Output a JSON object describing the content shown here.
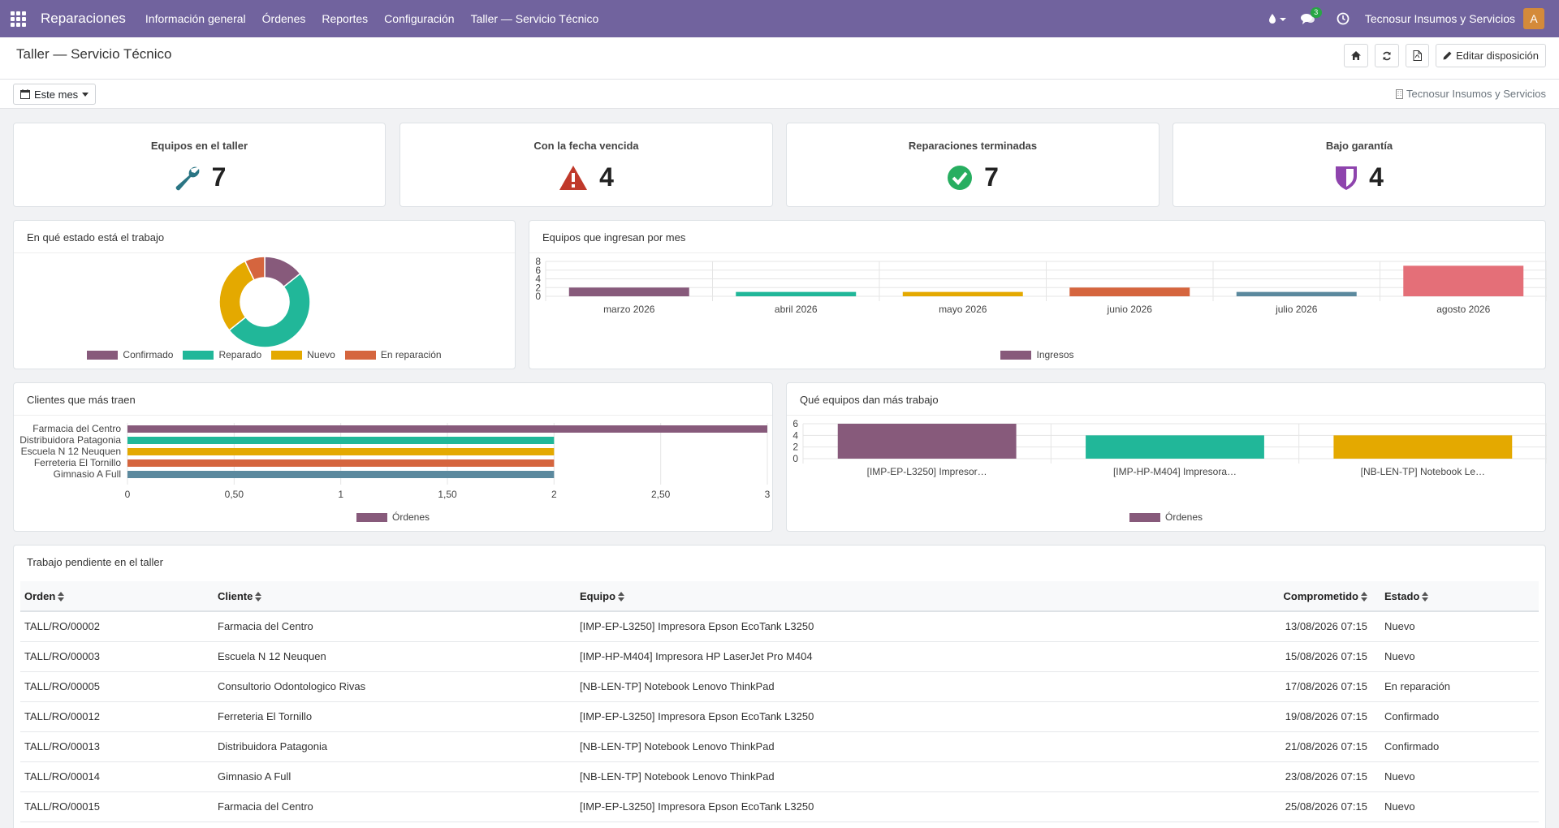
{
  "app": {
    "name": "Reparaciones",
    "menu": [
      "Información general",
      "Órdenes",
      "Reportes",
      "Configuración",
      "Taller — Servicio Técnico"
    ],
    "message_count": "3",
    "company": "Tecnosur Insumos y Servicios",
    "avatar_letter": "A"
  },
  "control": {
    "title": "Taller — Servicio Técnico",
    "edit_layout": "Editar disposición",
    "period": "Este mes",
    "company_filter": "Tecnosur Insumos y Servicios"
  },
  "kpis": [
    {
      "title": "Equipos en el taller",
      "value": "7",
      "icon": "wrench-icon",
      "color": "#2a7584"
    },
    {
      "title": "Con la fecha vencida",
      "value": "4",
      "icon": "warning-icon",
      "color": "#c0392b"
    },
    {
      "title": "Reparaciones terminadas",
      "value": "7",
      "icon": "check-circle-icon",
      "color": "#27ae60"
    },
    {
      "title": "Bajo garantía",
      "value": "4",
      "icon": "shield-icon",
      "color": "#8e44ad"
    }
  ],
  "panels": {
    "status": "En qué estado está el trabajo",
    "monthly": "Equipos que ingresan por mes",
    "clients": "Clientes que más traen",
    "devices": "Qué equipos dan más trabajo",
    "pending": "Trabajo pendiente en el taller"
  },
  "colors": {
    "purple": "#875a7b",
    "teal": "#21b799",
    "yellow": "#e4a900",
    "orange": "#d5653e",
    "slate": "#5b899e",
    "pink": "#e46f78"
  },
  "chart_data": [
    {
      "type": "pie",
      "title": "En qué estado está el trabajo",
      "categories": [
        "Confirmado",
        "Reparado",
        "Nuevo",
        "En reparación"
      ],
      "values": [
        2,
        7,
        4,
        1
      ],
      "legend": "bottom"
    },
    {
      "type": "bar",
      "title": "Equipos que ingresan por mes",
      "categories": [
        "marzo 2026",
        "abril 2026",
        "mayo 2026",
        "junio 2026",
        "julio 2026",
        "agosto 2026"
      ],
      "series": [
        {
          "name": "Ingresos",
          "values": [
            2,
            1,
            1,
            2,
            1,
            7
          ]
        }
      ],
      "ylim": [
        0,
        8
      ],
      "yticks": [
        "0",
        "2",
        "4",
        "6",
        "8"
      ],
      "legend": "bottom"
    },
    {
      "type": "bar",
      "orientation": "horizontal",
      "title": "Clientes que más traen",
      "categories": [
        "Farmacia del Centro",
        "Distribuidora Patagonia",
        "Escuela N 12 Neuquen",
        "Ferreteria El Tornillo",
        "Gimnasio A Full"
      ],
      "series": [
        {
          "name": "Órdenes",
          "values": [
            3,
            2,
            2,
            2,
            2
          ]
        }
      ],
      "xlim": [
        0,
        3
      ],
      "xticks": [
        "0",
        "0,50",
        "1",
        "1,50",
        "2",
        "2,50",
        "3"
      ],
      "legend": "bottom"
    },
    {
      "type": "bar",
      "title": "Qué equipos dan más trabajo",
      "categories": [
        "[IMP-EP-L3250] Impresor…",
        "[IMP-HP-M404] Impresora…",
        "[NB-LEN-TP] Notebook Le…"
      ],
      "series": [
        {
          "name": "Órdenes",
          "values": [
            6,
            4,
            4
          ]
        }
      ],
      "ylim": [
        0,
        6
      ],
      "yticks": [
        "0",
        "2",
        "4",
        "6"
      ],
      "legend": "bottom"
    }
  ],
  "table": {
    "columns": [
      "Orden",
      "Cliente",
      "Equipo",
      "Comprometido",
      "Estado"
    ],
    "rows": [
      [
        "TALL/RO/00002",
        "Farmacia del Centro",
        "[IMP-EP-L3250] Impresora Epson EcoTank L3250",
        "13/08/2026 07:15",
        "Nuevo"
      ],
      [
        "TALL/RO/00003",
        "Escuela N 12 Neuquen",
        "[IMP-HP-M404] Impresora HP LaserJet Pro M404",
        "15/08/2026 07:15",
        "Nuevo"
      ],
      [
        "TALL/RO/00005",
        "Consultorio Odontologico Rivas",
        "[NB-LEN-TP] Notebook Lenovo ThinkPad",
        "17/08/2026 07:15",
        "En reparación"
      ],
      [
        "TALL/RO/00012",
        "Ferreteria El Tornillo",
        "[IMP-EP-L3250] Impresora Epson EcoTank L3250",
        "19/08/2026 07:15",
        "Confirmado"
      ],
      [
        "TALL/RO/00013",
        "Distribuidora Patagonia",
        "[NB-LEN-TP] Notebook Lenovo ThinkPad",
        "21/08/2026 07:15",
        "Confirmado"
      ],
      [
        "TALL/RO/00014",
        "Gimnasio A Full",
        "[NB-LEN-TP] Notebook Lenovo ThinkPad",
        "23/08/2026 07:15",
        "Nuevo"
      ],
      [
        "TALL/RO/00015",
        "Farmacia del Centro",
        "[IMP-EP-L3250] Impresora Epson EcoTank L3250",
        "25/08/2026 07:15",
        "Nuevo"
      ]
    ]
  }
}
